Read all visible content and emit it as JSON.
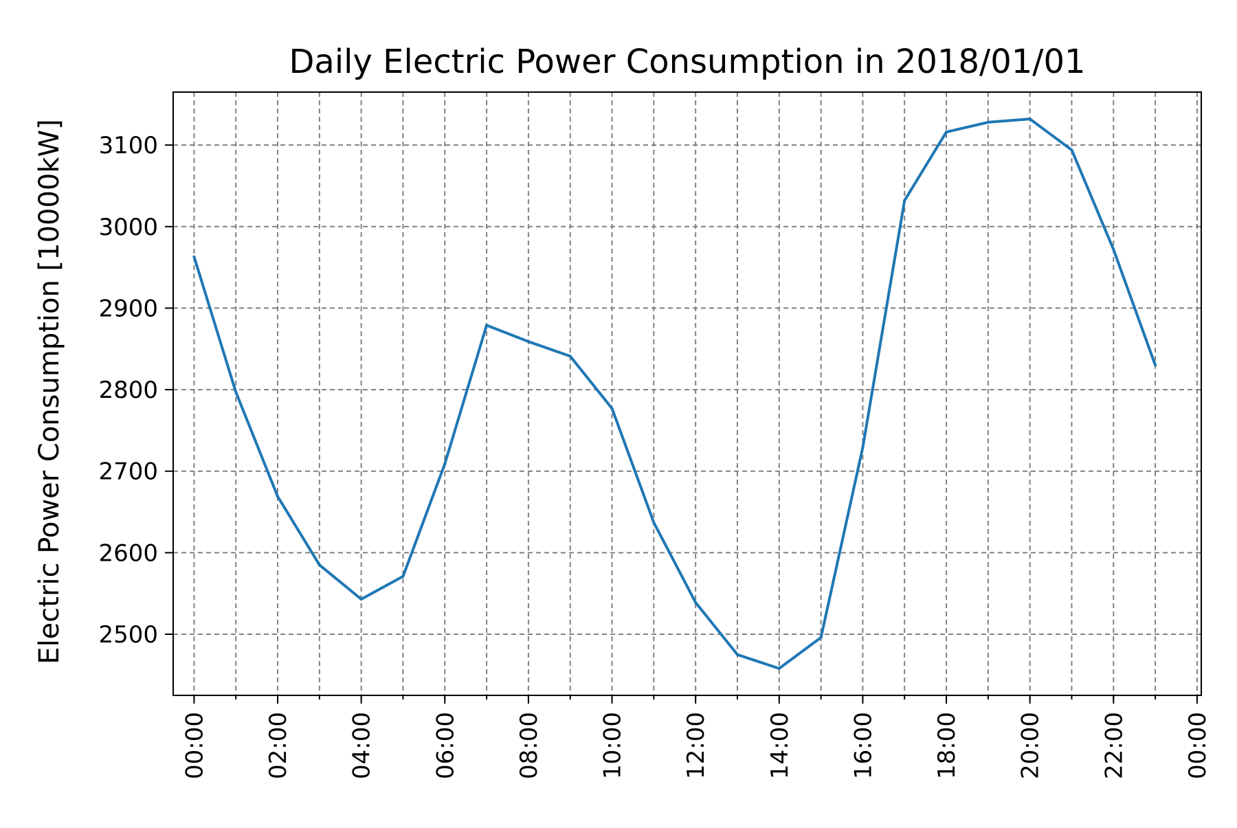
{
  "chart_data": {
    "type": "line",
    "title": "Daily Electric Power Consumption in 2018/01/01",
    "xlabel": "",
    "ylabel": "Electric Power Consumption [10000kW]",
    "x_hours": [
      0,
      1,
      2,
      3,
      4,
      5,
      6,
      7,
      8,
      9,
      10,
      11,
      12,
      13,
      14,
      15,
      16,
      17,
      18,
      19,
      20,
      21,
      22,
      23
    ],
    "series": [
      {
        "values": [
          2963,
          2797,
          2669,
          2585,
          2543,
          2571,
          2709,
          2879,
          2859,
          2841,
          2777,
          2637,
          2539,
          2475,
          2458,
          2496,
          2729,
          3032,
          3116,
          3128,
          3132,
          3094,
          2972,
          2830
        ]
      }
    ],
    "xlim_hours": [
      -0.5,
      24.1
    ],
    "ylim": [
      2425,
      3165
    ],
    "x_tick_labels": [
      "00:00",
      "02:00",
      "04:00",
      "06:00",
      "08:00",
      "10:00",
      "12:00",
      "14:00",
      "16:00",
      "18:00",
      "20:00",
      "22:00",
      "00:00"
    ],
    "x_tick_hours": [
      0,
      2,
      4,
      6,
      8,
      10,
      12,
      14,
      16,
      18,
      20,
      22,
      24
    ],
    "y_ticks": [
      2500,
      2600,
      2700,
      2800,
      2900,
      3000,
      3100
    ],
    "y_tick_labels": [
      "2500",
      "2600",
      "2700",
      "2800",
      "2900",
      "3000",
      "3100"
    ],
    "grid": true,
    "line_color": "#1f77b4",
    "grid_color": "#808080"
  }
}
